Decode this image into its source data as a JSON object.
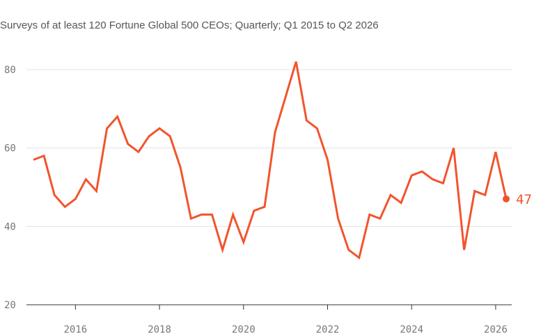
{
  "subtitle": "Surveys of at least 120 Fortune Global 500 CEOs; Quarterly; Q1 2015 to Q2 2026",
  "colors": {
    "line": "#f2542d",
    "grid": "#e3e3e3",
    "axis": "#333333",
    "tick_text": "#777777"
  },
  "chart_data": {
    "type": "line",
    "title": "",
    "xlabel": "",
    "ylabel": "",
    "grid": true,
    "ylim": [
      20,
      85
    ],
    "xlim": [
      2015.0,
      2026.5
    ],
    "y_ticks": [
      20,
      40,
      60,
      80
    ],
    "x_ticks": [
      2016,
      2018,
      2020,
      2022,
      2024,
      2026
    ],
    "series": [
      {
        "x": [
          2015.0,
          2015.25,
          2015.5,
          2015.75,
          2016.0,
          2016.25,
          2016.5,
          2016.75,
          2017.0,
          2017.25,
          2017.5,
          2017.75,
          2018.0,
          2018.25,
          2018.5,
          2018.75,
          2019.0,
          2019.25,
          2019.5,
          2019.75,
          2020.0,
          2020.25,
          2020.5,
          2020.75,
          2021.0,
          2021.25,
          2021.5,
          2021.75,
          2022.0,
          2022.25,
          2022.5,
          2022.75,
          2023.0,
          2023.25,
          2023.5,
          2023.75,
          2024.0,
          2024.25,
          2024.5,
          2024.75,
          2025.0,
          2025.25,
          2025.5,
          2025.75,
          2026.0,
          2026.25
        ],
        "values": [
          57,
          58,
          48,
          45,
          47,
          52,
          49,
          65,
          68,
          61,
          59,
          63,
          65,
          63,
          55,
          42,
          43,
          43,
          34,
          43,
          36,
          44,
          45,
          64,
          73,
          82,
          67,
          65,
          57,
          42,
          34,
          32,
          43,
          42,
          48,
          46,
          53,
          54,
          52,
          51,
          60,
          34,
          49,
          48,
          59,
          47
        ]
      }
    ],
    "end_label": "47"
  }
}
